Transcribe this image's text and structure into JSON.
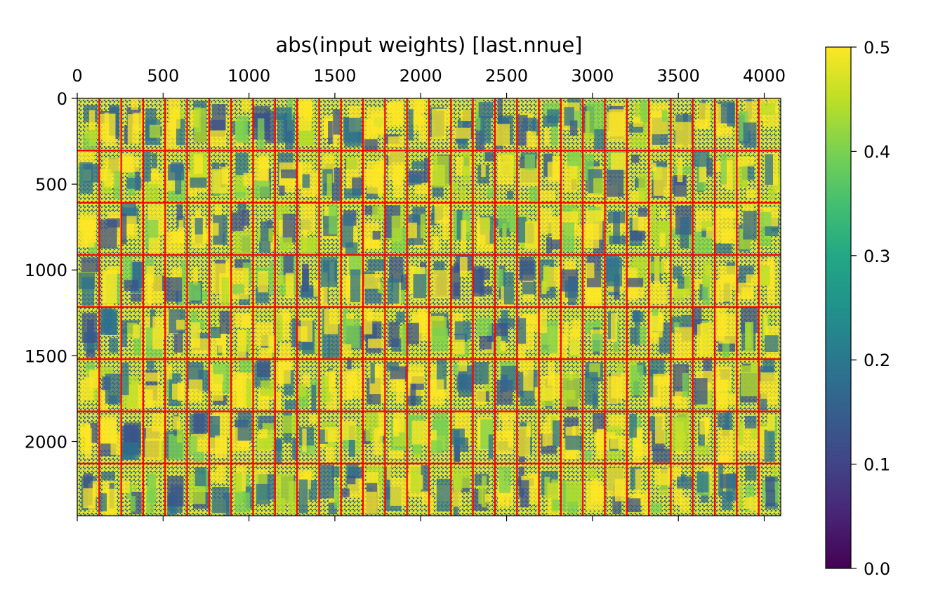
{
  "chart_data": {
    "type": "heatmap",
    "title": "abs(input weights) [last.nnue]",
    "xlabel": "",
    "ylabel": "",
    "xlim": [
      0,
      4096
    ],
    "ylim": [
      2432,
      0
    ],
    "x_axis_position": "top",
    "x_ticks": [
      0,
      500,
      1000,
      1500,
      2000,
      2500,
      3000,
      3500,
      4000
    ],
    "y_ticks": [
      0,
      500,
      1000,
      1500,
      2000
    ],
    "grid_lines": {
      "color": "#ff0000",
      "x_spacing": 128,
      "y_spacing": 304,
      "columns": 32,
      "rows": 8
    },
    "colorbar": {
      "colormap": "viridis",
      "range": [
        0.0,
        0.5
      ],
      "ticks": [
        "0.0",
        "0.1",
        "0.2",
        "0.3",
        "0.4",
        "0.5"
      ],
      "placement": "right"
    },
    "grid": false
  }
}
